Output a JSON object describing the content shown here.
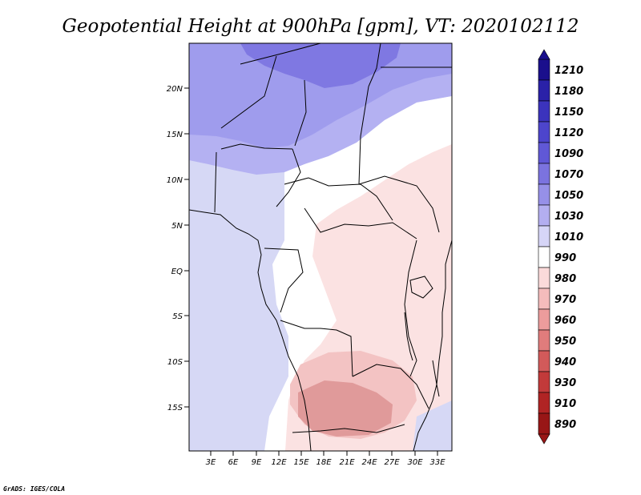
{
  "title": "Geopotential Height at 900hPa [gpm], VT: 2020102112",
  "credit": "GrADS: IGES/COLA",
  "map": {
    "lat_labels": [
      "20N",
      "15N",
      "10N",
      "5N",
      "EQ",
      "5S",
      "10S",
      "15S"
    ],
    "lon_labels": [
      "3E",
      "6E",
      "9E",
      "12E",
      "15E",
      "18E",
      "21E",
      "24E",
      "27E",
      "30E",
      "33E"
    ]
  },
  "colorbar": {
    "labels": [
      "1210",
      "1180",
      "1150",
      "1120",
      "1090",
      "1070",
      "1050",
      "1030",
      "1010",
      "990",
      "980",
      "970",
      "960",
      "950",
      "940",
      "930",
      "910",
      "890"
    ],
    "colors": [
      "#1a0f8c",
      "#2a21a8",
      "#3b33bd",
      "#4d45cc",
      "#6058d6",
      "#7b73df",
      "#9690e8",
      "#b3aef0",
      "#d6d5f7",
      "#ffffff",
      "#fbdada",
      "#f5bcbc",
      "#ec9c9c",
      "#e07c7c",
      "#d25a5a",
      "#c23a3a",
      "#b02424",
      "#981616"
    ]
  },
  "colors": {
    "sea_lavender": "#d6d8f5",
    "north_purple": "#9f9ced",
    "deep_purple": "#7f78e2",
    "light_pink": "#fbe2e2",
    "mid_pink": "#f3c3c3",
    "dark_pink": "#e09a9a"
  }
}
